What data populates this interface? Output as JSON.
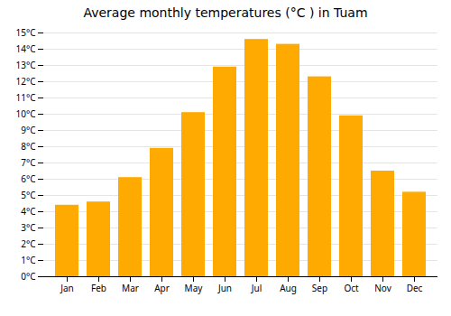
{
  "chart_data": {
    "type": "bar",
    "title": "Average monthly temperatures (°C ) in Tuam",
    "categories": [
      "Jan",
      "Feb",
      "Mar",
      "Apr",
      "May",
      "Jun",
      "Jul",
      "Aug",
      "Sep",
      "Oct",
      "Nov",
      "Dec"
    ],
    "values": [
      4.4,
      4.6,
      6.1,
      7.9,
      10.1,
      12.9,
      14.6,
      14.3,
      12.3,
      9.9,
      6.5,
      5.2
    ],
    "color": "#FFAA00",
    "ylim": [
      0,
      15
    ],
    "yticks": [
      {
        "value": 0,
        "label": "0°C"
      },
      {
        "value": 1,
        "label": "1°C"
      },
      {
        "value": 2,
        "label": "2°C"
      },
      {
        "value": 3,
        "label": "3°C"
      },
      {
        "value": 4,
        "label": "4°C"
      },
      {
        "value": 5,
        "label": "5°C"
      },
      {
        "value": 6,
        "label": "6°C"
      },
      {
        "value": 7,
        "label": "7°C"
      },
      {
        "value": 8,
        "label": "8°C"
      },
      {
        "value": 9,
        "label": "9°C"
      },
      {
        "value": 10,
        "label": "10°C"
      },
      {
        "value": 11,
        "label": "11°C"
      },
      {
        "value": 12,
        "label": "12°C"
      },
      {
        "value": 13,
        "label": "13°C"
      },
      {
        "value": 14,
        "label": "14°C"
      },
      {
        "value": 15,
        "label": "15°C"
      }
    ],
    "grid": true
  }
}
